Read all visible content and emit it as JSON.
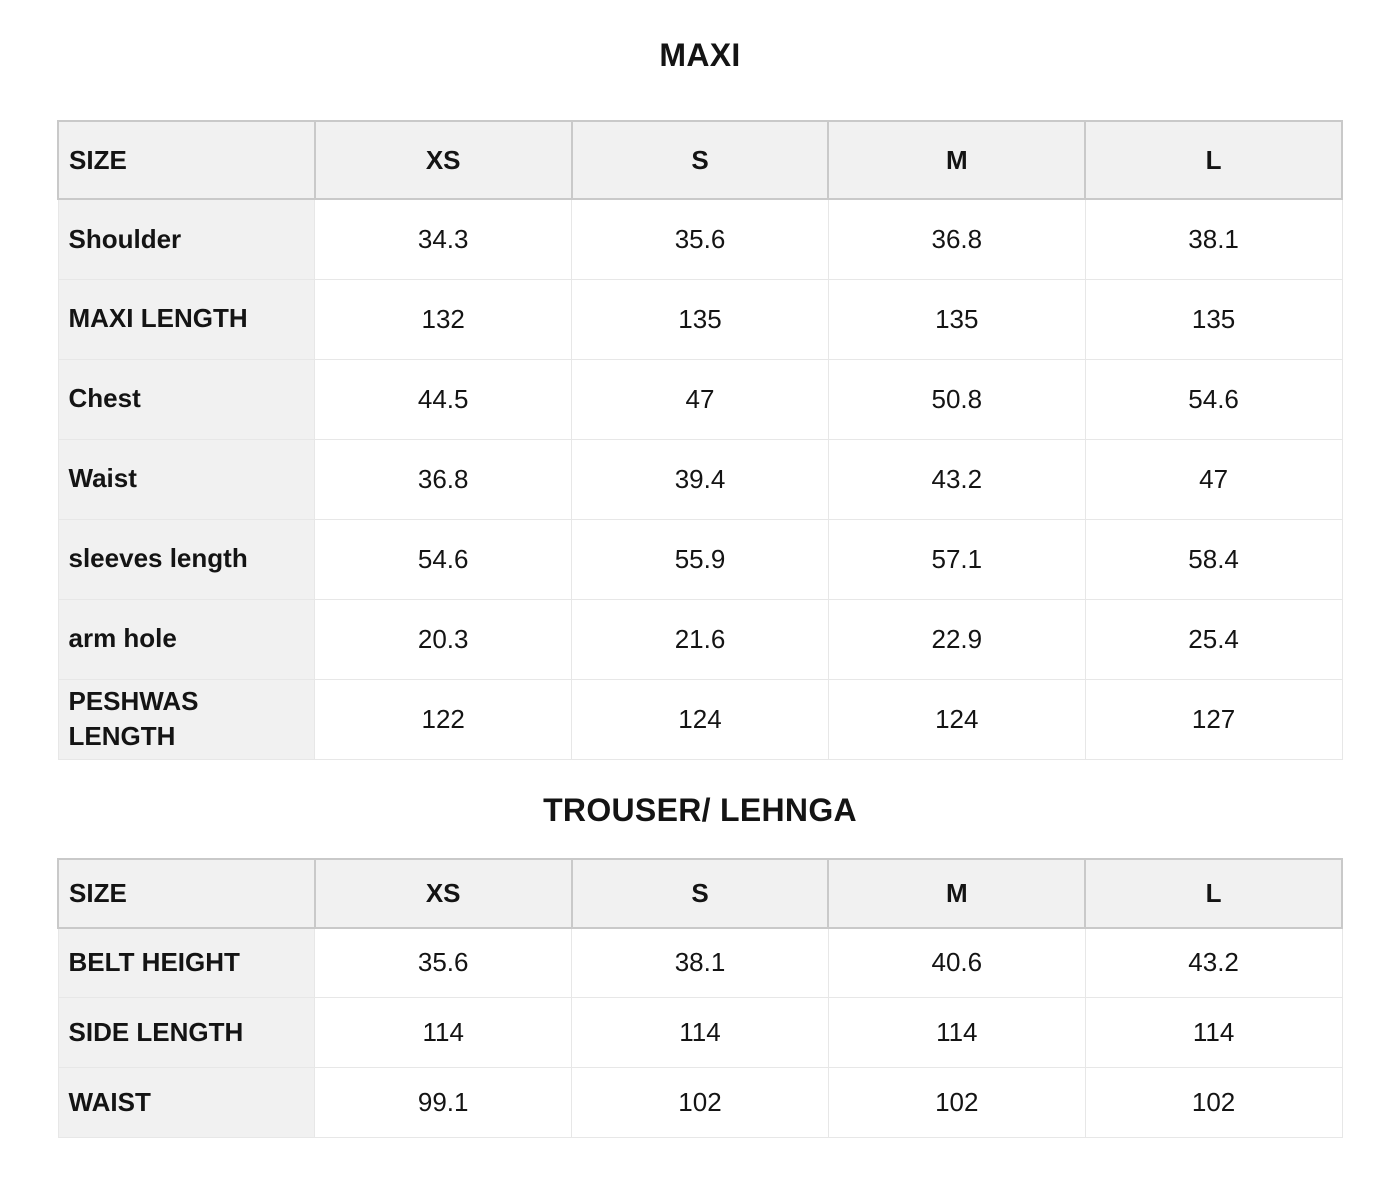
{
  "theme": {
    "header_bg": "#f1f1f1",
    "label_bg": "#f1f1f1",
    "header_border": "#c9c9c9",
    "cell_border": "#e7e7e7",
    "text_color": "#141414",
    "page_bg": "#ffffff"
  },
  "tables": [
    {
      "title": "MAXI",
      "columns": [
        "SIZE",
        "XS",
        "S",
        "M",
        "L"
      ],
      "rows": [
        {
          "label": "Shoulder",
          "values": [
            "34.3",
            "35.6",
            "36.8",
            "38.1"
          ]
        },
        {
          "label": "MAXI LENGTH",
          "values": [
            "132",
            "135",
            "135",
            "135"
          ]
        },
        {
          "label": "Chest",
          "values": [
            "44.5",
            "47",
            "50.8",
            "54.6"
          ]
        },
        {
          "label": "Waist",
          "values": [
            "36.8",
            "39.4",
            "43.2",
            "47"
          ]
        },
        {
          "label": "sleeves length",
          "values": [
            "54.6",
            "55.9",
            "57.1",
            "58.4"
          ]
        },
        {
          "label": "arm hole",
          "values": [
            "20.3",
            "21.6",
            "22.9",
            "25.4"
          ]
        },
        {
          "label": "PESHWAS LENGTH",
          "values": [
            "122",
            "124",
            "124",
            "127"
          ]
        }
      ]
    },
    {
      "title": "TROUSER/ LEHNGA",
      "columns": [
        "SIZE",
        "XS",
        "S",
        "M",
        "L"
      ],
      "rows": [
        {
          "label": "BELT HEIGHT",
          "values": [
            "35.6",
            "38.1",
            "40.6",
            "43.2"
          ]
        },
        {
          "label": "SIDE LENGTH",
          "values": [
            "114",
            "114",
            "114",
            "114"
          ]
        },
        {
          "label": "WAIST",
          "values": [
            "99.1",
            "102",
            "102",
            "102"
          ]
        }
      ]
    }
  ]
}
